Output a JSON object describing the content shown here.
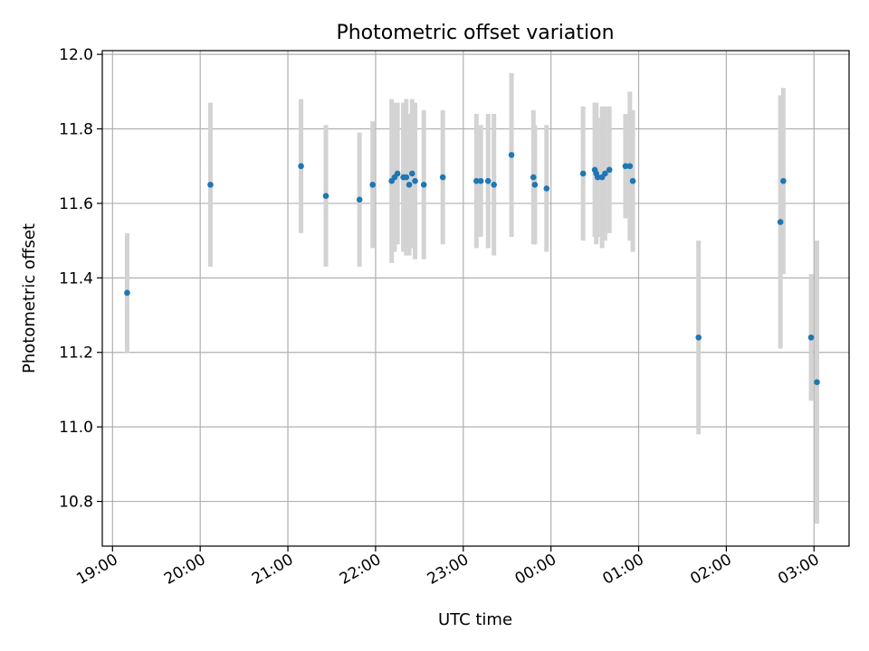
{
  "chart_data": {
    "type": "scatter",
    "title": "Photometric offset variation",
    "xlabel": "UTC time",
    "ylabel": "Photometric offset",
    "x_tick_labels": [
      "19:00",
      "20:00",
      "21:00",
      "22:00",
      "23:00",
      "00:00",
      "01:00",
      "02:00",
      "03:00"
    ],
    "y_tick_labels": [
      "10.8",
      "11.0",
      "11.2",
      "11.4",
      "11.6",
      "11.8",
      "12.0"
    ],
    "xlim": [
      "18:53",
      "03:24"
    ],
    "ylim": [
      10.68,
      12.01
    ],
    "grid": true,
    "legend": "none",
    "colors": {
      "marker": "#1f77b4",
      "errorbar": "#d3d3d3",
      "grid": "#b0b0b0"
    },
    "points": [
      {
        "x": "19:10",
        "y": 11.36,
        "err": 0.16
      },
      {
        "x": "20:07",
        "y": 11.65,
        "err": 0.22
      },
      {
        "x": "21:09",
        "y": 11.7,
        "err": 0.18
      },
      {
        "x": "21:26",
        "y": 11.62,
        "err": 0.19
      },
      {
        "x": "21:49",
        "y": 11.61,
        "err": 0.18
      },
      {
        "x": "21:58",
        "y": 11.65,
        "err": 0.17
      },
      {
        "x": "22:11",
        "y": 11.66,
        "err": 0.22
      },
      {
        "x": "22:13",
        "y": 11.67,
        "err": 0.2
      },
      {
        "x": "22:15",
        "y": 11.68,
        "err": 0.19
      },
      {
        "x": "22:19",
        "y": 11.67,
        "err": 0.2
      },
      {
        "x": "22:21",
        "y": 11.67,
        "err": 0.21
      },
      {
        "x": "22:23",
        "y": 11.65,
        "err": 0.19
      },
      {
        "x": "22:25",
        "y": 11.68,
        "err": 0.2
      },
      {
        "x": "22:27",
        "y": 11.66,
        "err": 0.21
      },
      {
        "x": "22:33",
        "y": 11.65,
        "err": 0.2
      },
      {
        "x": "22:46",
        "y": 11.67,
        "err": 0.18
      },
      {
        "x": "23:09",
        "y": 11.66,
        "err": 0.18
      },
      {
        "x": "23:12",
        "y": 11.66,
        "err": 0.15
      },
      {
        "x": "23:17",
        "y": 11.66,
        "err": 0.18
      },
      {
        "x": "23:21",
        "y": 11.65,
        "err": 0.19
      },
      {
        "x": "23:33",
        "y": 11.73,
        "err": 0.22
      },
      {
        "x": "23:48",
        "y": 11.67,
        "err": 0.18
      },
      {
        "x": "23:49",
        "y": 11.65,
        "err": 0.16
      },
      {
        "x": "23:57",
        "y": 11.64,
        "err": 0.17
      },
      {
        "x": "00:22",
        "y": 11.68,
        "err": 0.18
      },
      {
        "x": "00:30",
        "y": 11.69,
        "err": 0.18
      },
      {
        "x": "00:31",
        "y": 11.68,
        "err": 0.19
      },
      {
        "x": "00:32",
        "y": 11.67,
        "err": 0.16
      },
      {
        "x": "00:35",
        "y": 11.67,
        "err": 0.19
      },
      {
        "x": "00:37",
        "y": 11.68,
        "err": 0.18
      },
      {
        "x": "00:40",
        "y": 11.69,
        "err": 0.17
      },
      {
        "x": "00:51",
        "y": 11.7,
        "err": 0.14
      },
      {
        "x": "00:54",
        "y": 11.7,
        "err": 0.2
      },
      {
        "x": "00:56",
        "y": 11.66,
        "err": 0.19
      },
      {
        "x": "01:41",
        "y": 11.24,
        "err": 0.26
      },
      {
        "x": "02:37",
        "y": 11.55,
        "err": 0.34
      },
      {
        "x": "02:39",
        "y": 11.66,
        "err": 0.25
      },
      {
        "x": "02:58",
        "y": 11.24,
        "err": 0.17
      },
      {
        "x": "03:02",
        "y": 11.12,
        "err": 0.38
      }
    ]
  }
}
